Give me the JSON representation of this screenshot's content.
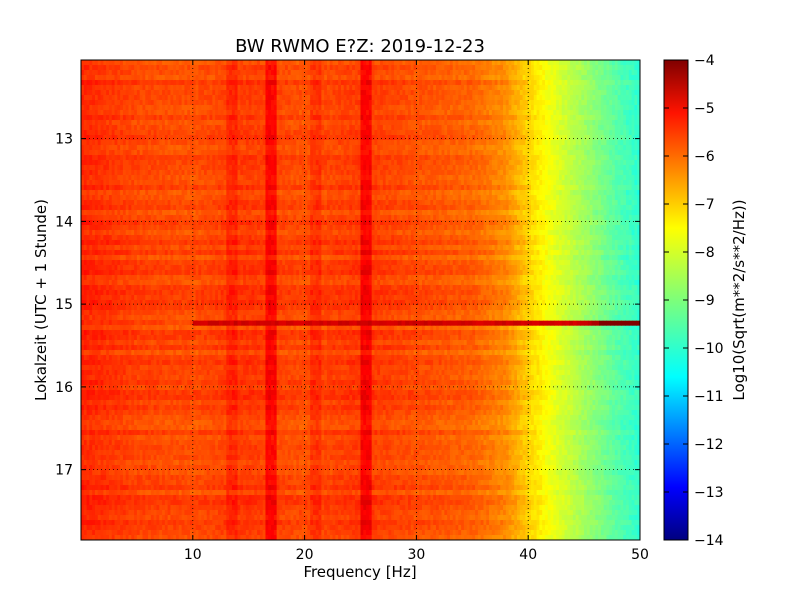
{
  "chart_data": {
    "type": "heatmap",
    "title": "BW RWMO E?Z: 2019-12-23",
    "xlabel": "Frequency [Hz]",
    "ylabel": "Lokalzeit (UTC + 1 Stunde)",
    "colorbar_label": "Log10(Sqrt(m**2/s**2/Hz))",
    "colormap": "jet",
    "xlim": [
      0,
      50
    ],
    "ylim": [
      17.85,
      12.05
    ],
    "y_inverted": true,
    "grid": true,
    "x_ticks": [
      10,
      20,
      30,
      40,
      50
    ],
    "y_ticks": [
      13,
      14,
      15,
      16,
      17
    ],
    "clim": [
      -14,
      -4
    ],
    "colorbar_ticks": [
      -4,
      -5,
      -6,
      -7,
      -8,
      -9,
      -10,
      -11,
      -12,
      -13,
      -14
    ],
    "spectrum_profile": {
      "frequency_hz": [
        0,
        5,
        10,
        15,
        20,
        25,
        30,
        35,
        38,
        40,
        42,
        44,
        46,
        48,
        50
      ],
      "log_amplitude": [
        -5.6,
        -5.9,
        -6.0,
        -5.8,
        -6.0,
        -5.8,
        -6.0,
        -6.2,
        -6.6,
        -7.3,
        -7.9,
        -8.4,
        -8.9,
        -9.4,
        -9.8
      ]
    },
    "strong_vertical_lines_hz": [
      17,
      25.5
    ],
    "weak_vertical_lines_hz": [
      13.5,
      21
    ],
    "horizontal_events": [
      {
        "time": 15.23,
        "log_amplitude": -4.6,
        "from_hz": 10,
        "to_hz": 50
      }
    ],
    "series": []
  }
}
